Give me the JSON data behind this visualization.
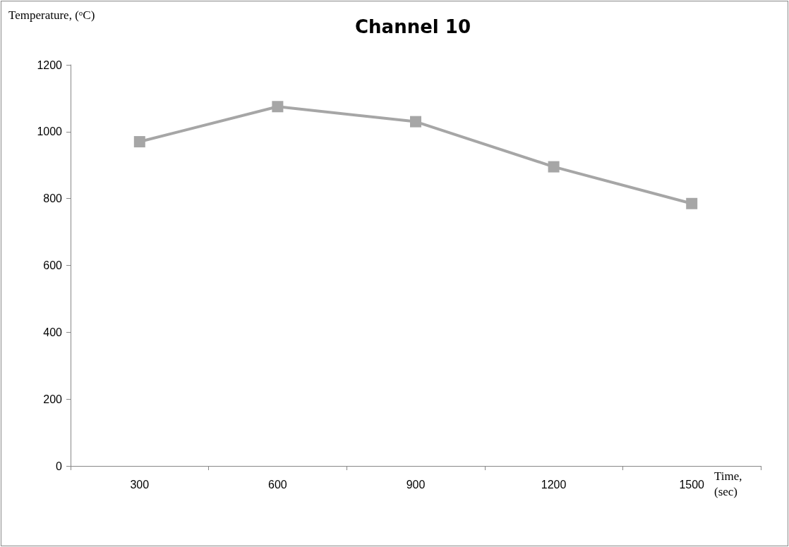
{
  "chart_data": {
    "type": "line",
    "title": "Channel 10",
    "xlabel": "Time, (sec)",
    "ylabel": "Temperature, ($^{o}$C)",
    "categories": [
      "300",
      "600",
      "900",
      "1200",
      "1500"
    ],
    "series": [
      {
        "color": "#a6a6a6",
        "values": [
          970,
          1075,
          1030,
          895,
          785
        ]
      }
    ],
    "ylim": [
      0,
      1200
    ],
    "yticks": [
      0,
      200,
      400,
      600,
      800,
      1000,
      1200
    ],
    "grid": false,
    "marker": "square",
    "line_style": "solid"
  }
}
